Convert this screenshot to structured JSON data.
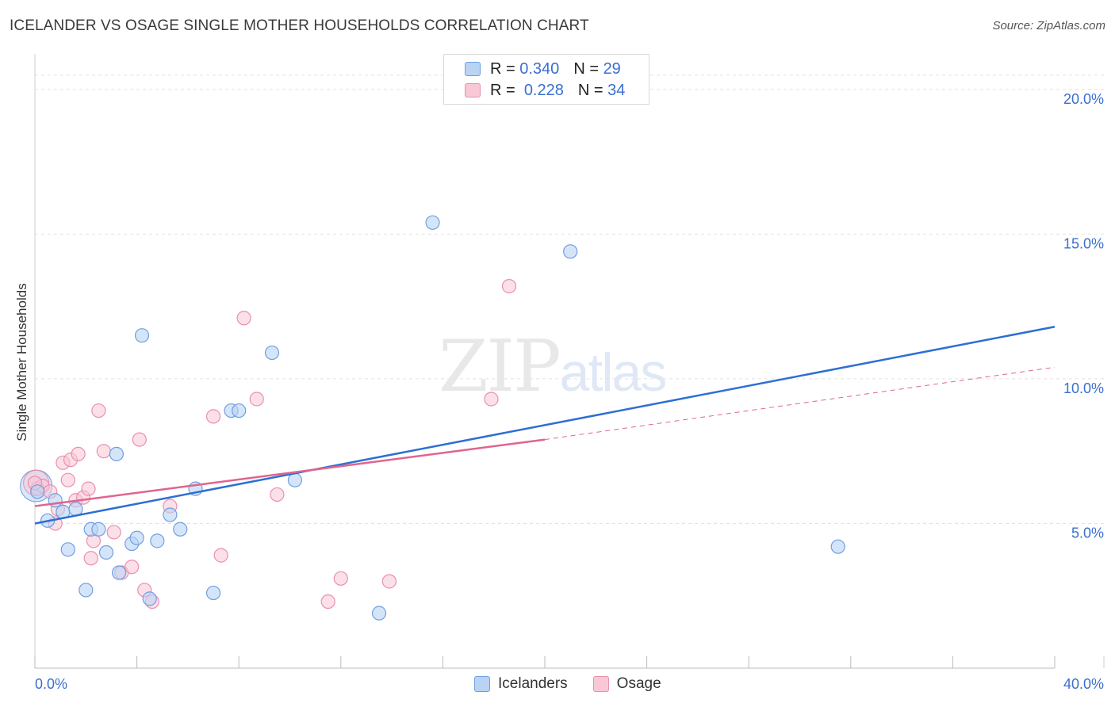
{
  "header": {
    "title": "ICELANDER VS OSAGE SINGLE MOTHER HOUSEHOLDS CORRELATION CHART",
    "source": "Source: ZipAtlas.com"
  },
  "watermark": {
    "main": "ZIP",
    "sub": "atlas"
  },
  "legend": {
    "rows": [
      {
        "r_label": "R =",
        "r_value": "0.340",
        "n_label": "N =",
        "n_value": "29"
      },
      {
        "r_label": "R =",
        "r_value": "0.228",
        "n_label": "N =",
        "n_value": "34"
      }
    ]
  },
  "bottom_legend": {
    "icelanders": "Icelanders",
    "osage": "Osage"
  },
  "colors": {
    "icelanders_fill": "#b9d3f5",
    "icelanders_stroke": "#6f9fe0",
    "icelanders_line": "#2d6fd3",
    "osage_fill": "#f9c7d6",
    "osage_stroke": "#ea8fae",
    "osage_line": "#e0648f",
    "tick_label": "#3a6fd0",
    "grid": "#e2e2e2"
  },
  "chart_data": {
    "type": "scatter",
    "title": "ICELANDER VS OSAGE SINGLE MOTHER HOUSEHOLDS CORRELATION CHART",
    "ylabel": "Single Mother Households",
    "xlabel": "",
    "xlim": [
      0,
      40
    ],
    "ylim": [
      0,
      20
    ],
    "x_tick_labels": [
      "0.0%",
      "40.0%"
    ],
    "y_ticks": [
      5,
      10,
      15,
      20
    ],
    "y_tick_labels": [
      "5.0%",
      "10.0%",
      "15.0%",
      "20.0%"
    ],
    "grid": true,
    "legend_position": "top-center",
    "series": [
      {
        "name": "Icelanders",
        "r": 0.34,
        "n": 29,
        "points": [
          [
            0.1,
            6.1
          ],
          [
            0.5,
            5.1
          ],
          [
            0.8,
            5.8
          ],
          [
            1.1,
            5.4
          ],
          [
            1.3,
            4.1
          ],
          [
            1.6,
            5.5
          ],
          [
            2.0,
            2.7
          ],
          [
            2.2,
            4.8
          ],
          [
            2.5,
            4.8
          ],
          [
            2.8,
            4.0
          ],
          [
            3.2,
            7.4
          ],
          [
            3.3,
            3.3
          ],
          [
            3.8,
            4.3
          ],
          [
            4.0,
            4.5
          ],
          [
            4.2,
            11.5
          ],
          [
            4.5,
            2.4
          ],
          [
            4.8,
            4.4
          ],
          [
            5.3,
            5.3
          ],
          [
            5.7,
            4.8
          ],
          [
            6.3,
            6.2
          ],
          [
            7.0,
            2.6
          ],
          [
            7.7,
            8.9
          ],
          [
            8.0,
            8.9
          ],
          [
            9.3,
            10.9
          ],
          [
            10.2,
            6.5
          ],
          [
            13.5,
            1.9
          ],
          [
            15.6,
            15.4
          ],
          [
            21.0,
            14.4
          ],
          [
            31.5,
            4.2
          ]
        ],
        "trend": [
          [
            0,
            5.0
          ],
          [
            40,
            11.8
          ]
        ]
      },
      {
        "name": "Osage",
        "r": 0.228,
        "n": 34,
        "points": [
          [
            0.1,
            6.2
          ],
          [
            0.3,
            6.3
          ],
          [
            0.6,
            6.1
          ],
          [
            0.8,
            5.0
          ],
          [
            0.9,
            5.5
          ],
          [
            1.1,
            7.1
          ],
          [
            1.3,
            6.5
          ],
          [
            1.4,
            7.2
          ],
          [
            1.6,
            5.8
          ],
          [
            1.7,
            7.4
          ],
          [
            1.9,
            5.9
          ],
          [
            2.1,
            6.2
          ],
          [
            2.2,
            3.8
          ],
          [
            2.3,
            4.4
          ],
          [
            2.5,
            8.9
          ],
          [
            2.7,
            7.5
          ],
          [
            3.1,
            4.7
          ],
          [
            3.4,
            3.3
          ],
          [
            3.8,
            3.5
          ],
          [
            4.1,
            7.9
          ],
          [
            4.3,
            2.7
          ],
          [
            4.6,
            2.3
          ],
          [
            5.3,
            5.6
          ],
          [
            7.0,
            8.7
          ],
          [
            7.3,
            3.9
          ],
          [
            8.2,
            12.1
          ],
          [
            8.7,
            9.3
          ],
          [
            9.5,
            6.0
          ],
          [
            11.5,
            2.3
          ],
          [
            12.0,
            3.1
          ],
          [
            13.9,
            3.0
          ],
          [
            17.9,
            9.3
          ],
          [
            18.6,
            13.2
          ],
          [
            0.0,
            6.4
          ]
        ],
        "trend_solid": [
          [
            0,
            5.6
          ],
          [
            20,
            7.9
          ]
        ],
        "trend_dashed": [
          [
            20,
            7.9
          ],
          [
            40,
            10.4
          ]
        ]
      }
    ]
  }
}
